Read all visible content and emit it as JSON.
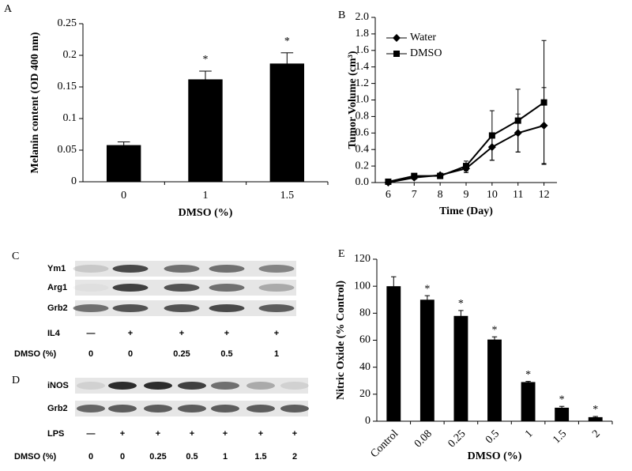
{
  "chart_data": [
    {
      "type": "bar",
      "label": "A",
      "y_label": "Melanin content (OD 400 nm)",
      "x_label": "DMSO (%)",
      "categories": [
        "0",
        "1",
        "1.5"
      ],
      "values": [
        0.058,
        0.162,
        0.187
      ],
      "errors": [
        0.005,
        0.013,
        0.017
      ],
      "annotations": [
        null,
        "*",
        "*"
      ],
      "color": "#000000",
      "ylim": [
        0,
        0.25
      ],
      "yticks": [
        0,
        0.05,
        0.1,
        0.15,
        0.2,
        0.25
      ]
    },
    {
      "type": "line",
      "label": "B",
      "y_label": "Tumor Volume (cm³)",
      "x_label": "Time (Day)",
      "x": [
        6,
        7,
        8,
        9,
        10,
        11,
        12
      ],
      "series": [
        {
          "name": "Water",
          "color": "#000000",
          "marker": "diamond",
          "values": [
            0.0,
            0.06,
            0.09,
            0.17,
            0.43,
            0.6,
            0.69
          ],
          "errors": [
            0.01,
            0.02,
            0.02,
            0.05,
            0.16,
            0.23,
            0.46
          ]
        },
        {
          "name": "DMSO",
          "color": "#000000",
          "marker": "square",
          "values": [
            0.01,
            0.08,
            0.08,
            0.2,
            0.57,
            0.75,
            0.97
          ],
          "errors": [
            0.01,
            0.02,
            0.02,
            0.06,
            0.3,
            0.38,
            0.75
          ]
        }
      ],
      "legend": "upper left",
      "xlim": [
        5.5,
        12.5
      ],
      "xticks": [
        6,
        7,
        8,
        9,
        10,
        11,
        12
      ],
      "ylim": [
        0,
        2
      ],
      "yticks": [
        {
          "value": 0,
          "label": "0.0"
        },
        0.2,
        0.4,
        0.6,
        0.8,
        {
          "value": 1,
          "label": "1.0"
        },
        1.2,
        1.4,
        1.6,
        1.8,
        {
          "value": 2,
          "label": "2.0"
        }
      ]
    },
    {
      "type": "bar",
      "label": "E",
      "y_label": "Nitric Oxide (% Control)",
      "x_label": "DMSO (%)",
      "categories": [
        "Control",
        "0.08",
        "0.25",
        "0.5",
        "1",
        "1.5",
        "2"
      ],
      "values": [
        100,
        90,
        78,
        60.5,
        29,
        10,
        3
      ],
      "errors": [
        7,
        3,
        4,
        2,
        0.5,
        1,
        0.5
      ],
      "annotations": [
        null,
        "*",
        "*",
        "*",
        "*",
        "*",
        "*"
      ],
      "color": "#000000",
      "ylim": [
        0,
        120
      ],
      "yticks": [
        0,
        20,
        40,
        60,
        80,
        100,
        120
      ]
    }
  ],
  "blots": [
    {
      "label": "C",
      "rows": [
        "Ym1",
        "Arg1",
        "Grb2"
      ],
      "treatment": "IL4",
      "treatment_marks": [
        "—",
        "+",
        "+",
        "+",
        "+"
      ],
      "dose_label": "DMSO (%)",
      "doses": [
        "0",
        "0",
        "0.25",
        "0.5",
        "1"
      ]
    },
    {
      "label": "D",
      "rows": [
        "iNOS",
        "Grb2"
      ],
      "treatment": "LPS",
      "treatment_marks": [
        "—",
        "+",
        "+",
        "+",
        "+",
        "+",
        "+"
      ],
      "dose_label": "DMSO (%)",
      "doses": [
        "0",
        "0",
        "0.25",
        "0.5",
        "1",
        "1.5",
        "2"
      ]
    }
  ]
}
